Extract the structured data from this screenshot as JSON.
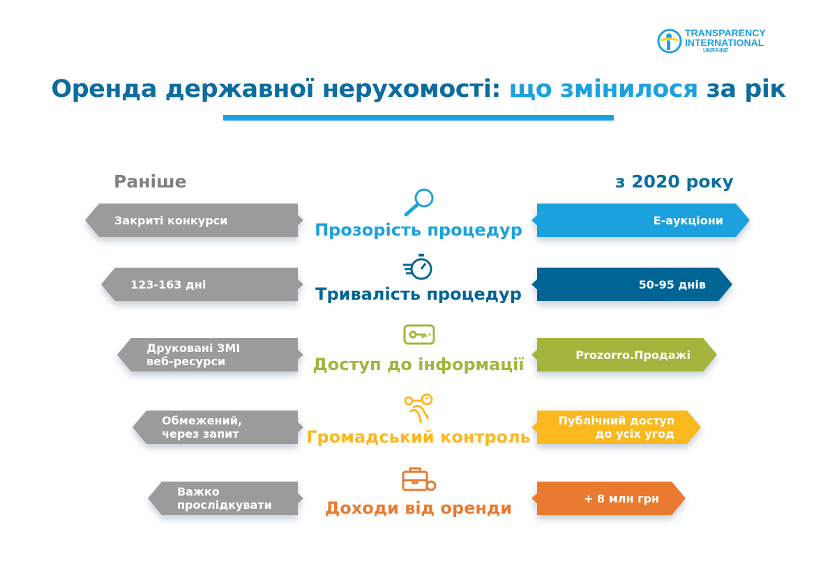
{
  "logo": {
    "line1": "TRANSPARENCY",
    "line2": "INTERNATIONAL",
    "line3": "UKRAINE"
  },
  "title": {
    "part1": "Оренда державної нерухомості:",
    "part2": "що змінилося",
    "part3": "за рік"
  },
  "headers": {
    "before": "Раніше",
    "after": "з 2020 року"
  },
  "colors": {
    "gray": "#9b9b9b",
    "title": "#0b6c9f",
    "accent": "#1ba1de"
  },
  "rows": [
    {
      "category": "Прозорість процедур",
      "before": "Закриті конкурси",
      "after": "Е-аукціони",
      "color": "#1ba1de",
      "icon": "magnifier-icon"
    },
    {
      "category": "Тривалість процедур",
      "before": "123-163 дні",
      "after": "50-95 днів",
      "color": "#006494",
      "icon": "stopwatch-icon"
    },
    {
      "category": "Доступ до інформації",
      "before": "Друковані ЗМІ\nвеб-ресурси",
      "after": "Prozorro.Продажі",
      "color": "#a4b43c",
      "icon": "key-icon"
    },
    {
      "category": "Громадський контроль",
      "before": "Обмежений,\nчерез запит",
      "after": "Публічний доступ\nдо усіх угод",
      "color": "#fbb81f",
      "icon": "touch-alert-icon"
    },
    {
      "category": "Доходи від оренди",
      "before": "Важко прослідкувати",
      "after": "+ 8 млн грн",
      "color": "#ea7a2f",
      "icon": "briefcase-money-icon"
    }
  ]
}
